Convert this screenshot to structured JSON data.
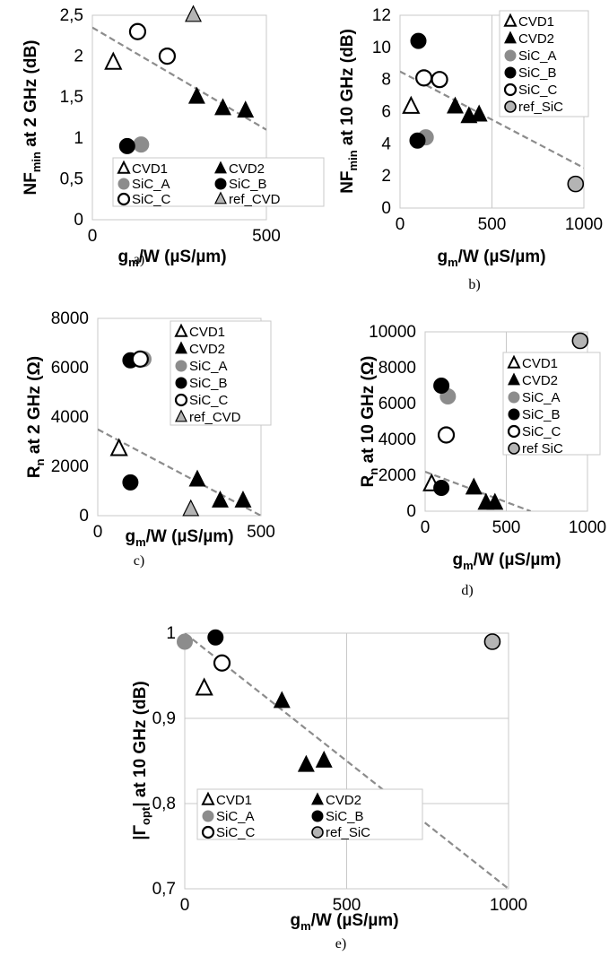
{
  "colors": {
    "grid": "#c8c8c8",
    "trend": "#8c8c8c",
    "gray_fill": "#8c8c8c",
    "ref_fill": "#b4b4b4",
    "black": "#000000",
    "white": "#ffffff"
  },
  "chart_data": [
    {
      "id": "a",
      "type": "scatter",
      "caption": "a)",
      "xlabel": {
        "main": "g",
        "sub": "m",
        "rest": "/W (µS/µm)"
      },
      "ylabel": {
        "main": "NF",
        "sub": "min",
        "rest": " at 2 GHz (dB)"
      },
      "xlim": [
        0,
        500
      ],
      "ylim": [
        0,
        2.5
      ],
      "xticks": [
        {
          "v": 0,
          "label": "0"
        },
        {
          "v": 500,
          "label": "500"
        }
      ],
      "yticks": [
        {
          "v": 0,
          "label": "0"
        },
        {
          "v": 0.5,
          "label": "0,5"
        },
        {
          "v": 1,
          "label": "1"
        },
        {
          "v": 1.5,
          "label": "1,5"
        },
        {
          "v": 2,
          "label": "2"
        },
        {
          "v": 2.5,
          "label": "2,5"
        }
      ],
      "grid": "vertical",
      "legend": {
        "position": "bottom-center",
        "columns": 2
      },
      "trend": [
        [
          0,
          2.35
        ],
        [
          500,
          1.1
        ]
      ],
      "series": [
        {
          "name": "CVD1",
          "marker": "triangle-open",
          "points": [
            [
              60,
              1.92
            ]
          ]
        },
        {
          "name": "CVD2",
          "marker": "triangle-black",
          "points": [
            [
              300,
              1.5
            ],
            [
              375,
              1.36
            ],
            [
              440,
              1.33
            ]
          ]
        },
        {
          "name": "SiC_A",
          "marker": "circle-gray",
          "points": [
            [
              140,
              0.92
            ]
          ]
        },
        {
          "name": "SiC_B",
          "marker": "circle-black",
          "points": [
            [
              100,
              0.9
            ]
          ]
        },
        {
          "name": "SiC_C",
          "marker": "circle-open",
          "points": [
            [
              130,
              2.3
            ],
            [
              215,
              2.0
            ]
          ]
        },
        {
          "name": "ref_CVD",
          "marker": "triangle-gray",
          "points": [
            [
              290,
              2.5
            ]
          ]
        }
      ]
    },
    {
      "id": "b",
      "type": "scatter",
      "caption": "b)",
      "xlabel": {
        "main": "g",
        "sub": "m",
        "rest": "/W (µS/µm)"
      },
      "ylabel": {
        "main": "NF",
        "sub": "min",
        "rest": " at 10 GHz (dB)"
      },
      "xlim": [
        0,
        1000
      ],
      "ylim": [
        0,
        12
      ],
      "xticks": [
        {
          "v": 0,
          "label": "0"
        },
        {
          "v": 500,
          "label": "500"
        },
        {
          "v": 1000,
          "label": "1000"
        }
      ],
      "yticks": [
        {
          "v": 0,
          "label": "0"
        },
        {
          "v": 2,
          "label": "2"
        },
        {
          "v": 4,
          "label": "4"
        },
        {
          "v": 6,
          "label": "6"
        },
        {
          "v": 8,
          "label": "8"
        },
        {
          "v": 10,
          "label": "10"
        },
        {
          "v": 12,
          "label": "12"
        }
      ],
      "grid": "vertical",
      "legend": {
        "position": "top-right",
        "columns": 1
      },
      "trend": [
        [
          0,
          8.5
        ],
        [
          1000,
          2.5
        ]
      ],
      "series": [
        {
          "name": "CVD1",
          "marker": "triangle-open",
          "points": [
            [
              60,
              6.3
            ]
          ]
        },
        {
          "name": "CVD2",
          "marker": "triangle-black",
          "points": [
            [
              300,
              6.3
            ],
            [
              375,
              5.7
            ],
            [
              430,
              5.8
            ]
          ]
        },
        {
          "name": "SiC_A",
          "marker": "circle-gray",
          "points": [
            [
              140,
              4.4
            ]
          ]
        },
        {
          "name": "SiC_B",
          "marker": "circle-black",
          "points": [
            [
              100,
              10.4
            ],
            [
              95,
              4.2
            ]
          ]
        },
        {
          "name": "SiC_C",
          "marker": "circle-open",
          "points": [
            [
              130,
              8.1
            ],
            [
              215,
              8.0
            ]
          ]
        },
        {
          "name": "ref_SiC",
          "marker": "circle-ref",
          "points": [
            [
              955,
              1.5
            ]
          ]
        }
      ]
    },
    {
      "id": "c",
      "type": "scatter",
      "caption": "c)",
      "xlabel": {
        "main": "g",
        "sub": "m",
        "rest": "/W (µS/µm)"
      },
      "ylabel": {
        "main": "R",
        "sub": "n",
        "rest": " at 2 GHz (Ω)"
      },
      "xlim": [
        0,
        500
      ],
      "ylim": [
        0,
        8000
      ],
      "xticks": [
        {
          "v": 0,
          "label": "0"
        },
        {
          "v": 500,
          "label": "500"
        }
      ],
      "yticks": [
        {
          "v": 0,
          "label": "0"
        },
        {
          "v": 2000,
          "label": "2000"
        },
        {
          "v": 4000,
          "label": "4000"
        },
        {
          "v": 6000,
          "label": "6000"
        },
        {
          "v": 8000,
          "label": "8000"
        }
      ],
      "grid": "vertical",
      "legend": {
        "position": "top-right",
        "columns": 1
      },
      "trend": [
        [
          0,
          3500
        ],
        [
          500,
          0
        ]
      ],
      "series": [
        {
          "name": "CVD1",
          "marker": "triangle-open",
          "points": [
            [
              65,
              2700
            ]
          ]
        },
        {
          "name": "CVD2",
          "marker": "triangle-black",
          "points": [
            [
              305,
              1450
            ],
            [
              375,
              600
            ],
            [
              445,
              600
            ]
          ]
        },
        {
          "name": "SiC_A",
          "marker": "circle-gray",
          "points": [
            [
              140,
              6350
            ]
          ]
        },
        {
          "name": "SiC_B",
          "marker": "circle-black",
          "points": [
            [
              100,
              6300
            ],
            [
              100,
              1350
            ]
          ]
        },
        {
          "name": "SiC_C",
          "marker": "circle-open",
          "points": [
            [
              130,
              6350
            ]
          ]
        },
        {
          "name": "ref_CVD",
          "marker": "triangle-gray",
          "points": [
            [
              285,
              250
            ]
          ]
        }
      ]
    },
    {
      "id": "d",
      "type": "scatter",
      "caption": "d)",
      "xlabel": {
        "main": "g",
        "sub": "m",
        "rest": "/W (µS/µm)"
      },
      "ylabel": {
        "main": "R",
        "sub": "n",
        "rest": " at 10 GHz (Ω)"
      },
      "xlim": [
        0,
        1000
      ],
      "ylim": [
        0,
        10000
      ],
      "xticks": [
        {
          "v": 0,
          "label": "0"
        },
        {
          "v": 500,
          "label": "500"
        },
        {
          "v": 1000,
          "label": "1000"
        }
      ],
      "yticks": [
        {
          "v": 0,
          "label": "0"
        },
        {
          "v": 2000,
          "label": "2000"
        },
        {
          "v": 4000,
          "label": "4000"
        },
        {
          "v": 6000,
          "label": "6000"
        },
        {
          "v": 8000,
          "label": "8000"
        },
        {
          "v": 10000,
          "label": "10000"
        }
      ],
      "grid": "vertical",
      "legend": {
        "position": "right",
        "columns": 1
      },
      "trend": [
        [
          0,
          2200
        ],
        [
          650,
          0
        ]
      ],
      "series": [
        {
          "name": "CVD1",
          "marker": "triangle-open",
          "points": [
            [
              40,
              1500
            ]
          ]
        },
        {
          "name": "CVD2",
          "marker": "triangle-black",
          "points": [
            [
              300,
              1300
            ],
            [
              375,
              450
            ],
            [
              430,
              450
            ]
          ]
        },
        {
          "name": "SiC_A",
          "marker": "circle-gray",
          "points": [
            [
              140,
              6400
            ]
          ]
        },
        {
          "name": "SiC_B",
          "marker": "circle-black",
          "points": [
            [
              100,
              7000
            ],
            [
              100,
              1300
            ]
          ]
        },
        {
          "name": "SiC_C",
          "marker": "circle-open",
          "points": [
            [
              130,
              4250
            ]
          ]
        },
        {
          "name": "ref SiC",
          "marker": "circle-ref",
          "points": [
            [
              955,
              9500
            ]
          ]
        }
      ]
    },
    {
      "id": "e",
      "type": "scatter",
      "caption": "e)",
      "xlabel": {
        "main": "g",
        "sub": "m",
        "rest": "/W (µS/µm)"
      },
      "ylabel": {
        "main": "|Γ",
        "sub": "opt",
        "rest": "| at 10 GHz (dB)"
      },
      "xlim": [
        0,
        1000
      ],
      "ylim": [
        0.7,
        1
      ],
      "xticks": [
        {
          "v": 0,
          "label": "0"
        },
        {
          "v": 500,
          "label": "500"
        },
        {
          "v": 1000,
          "label": "1000"
        }
      ],
      "yticks": [
        {
          "v": 0.7,
          "label": "0,7"
        },
        {
          "v": 0.8,
          "label": "0,8"
        },
        {
          "v": 0.9,
          "label": "0,9"
        },
        {
          "v": 1,
          "label": "1"
        }
      ],
      "grid": "both",
      "legend": {
        "position": "bottom-left",
        "columns": 2
      },
      "trend": [
        [
          0,
          1.0
        ],
        [
          1000,
          0.7
        ]
      ],
      "series": [
        {
          "name": "CVD1",
          "marker": "triangle-open",
          "points": [
            [
              60,
              0.935
            ]
          ]
        },
        {
          "name": "CVD2",
          "marker": "triangle-black",
          "points": [
            [
              300,
              0.92
            ],
            [
              375,
              0.845
            ],
            [
              430,
              0.85
            ]
          ]
        },
        {
          "name": "SiC_A",
          "marker": "circle-gray",
          "points": [
            [
              0,
              0.99
            ]
          ]
        },
        {
          "name": "SiC_B",
          "marker": "circle-black",
          "points": [
            [
              95,
              0.995
            ]
          ]
        },
        {
          "name": "SiC_C",
          "marker": "circle-open",
          "points": [
            [
              115,
              0.965
            ]
          ]
        },
        {
          "name": "ref_SiC",
          "marker": "circle-ref",
          "points": [
            [
              950,
              0.99
            ]
          ]
        }
      ]
    }
  ]
}
